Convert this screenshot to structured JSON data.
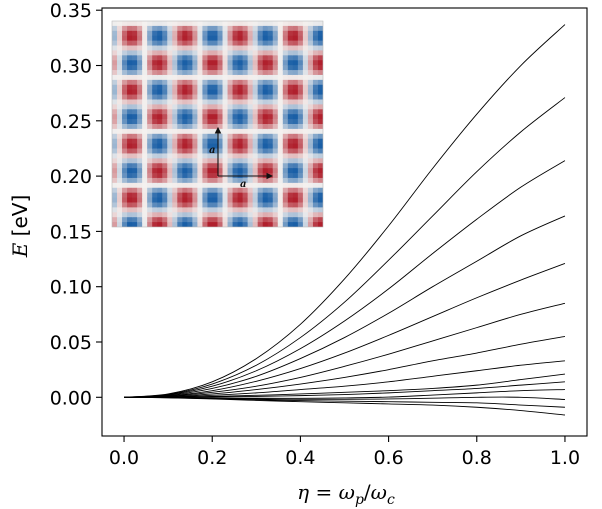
{
  "chart_data": {
    "type": "line",
    "xlabel": {
      "var": "η",
      "eq": " = ",
      "num": "ω",
      "num_sub": "p",
      "slash": "/",
      "den": "ω",
      "den_sub": "c"
    },
    "ylabel": {
      "var": "E",
      "unit": " [eV]"
    },
    "xlim": [
      -0.05,
      1.05
    ],
    "ylim": [
      -0.035,
      0.352
    ],
    "xticks": [
      0.0,
      0.2,
      0.4,
      0.6,
      0.8,
      1.0
    ],
    "xtick_labels": [
      "0.0",
      "0.2",
      "0.4",
      "0.6",
      "0.8",
      "1.0"
    ],
    "yticks": [
      0.0,
      0.05,
      0.1,
      0.15,
      0.2,
      0.25,
      0.3,
      0.35
    ],
    "ytick_labels": [
      "0.00",
      "0.05",
      "0.10",
      "0.15",
      "0.20",
      "0.25",
      "0.30",
      "0.35"
    ],
    "grid": false,
    "legend": "none",
    "line_color": "#000000",
    "x": [
      0.0,
      0.1,
      0.2,
      0.3,
      0.4,
      0.5,
      0.6,
      0.7,
      0.8,
      0.9,
      1.0
    ],
    "series": [
      {
        "values": [
          0,
          0.003,
          0.014,
          0.035,
          0.066,
          0.107,
          0.155,
          0.207,
          0.256,
          0.3,
          0.337
        ]
      },
      {
        "values": [
          0,
          0.0026,
          0.012,
          0.029,
          0.054,
          0.086,
          0.124,
          0.164,
          0.204,
          0.24,
          0.271
        ]
      },
      {
        "values": [
          0,
          0.0022,
          0.01,
          0.024,
          0.044,
          0.069,
          0.098,
          0.13,
          0.161,
          0.19,
          0.214
        ]
      },
      {
        "values": [
          0,
          0.0018,
          0.008,
          0.019,
          0.035,
          0.054,
          0.076,
          0.1,
          0.123,
          0.146,
          0.164
        ]
      },
      {
        "values": [
          0,
          0.0014,
          0.006,
          0.0145,
          0.026,
          0.04,
          0.056,
          0.073,
          0.09,
          0.106,
          0.121
        ]
      },
      {
        "values": [
          0,
          0.001,
          0.0045,
          0.01,
          0.018,
          0.028,
          0.039,
          0.051,
          0.063,
          0.075,
          0.085
        ]
      },
      {
        "values": [
          0,
          0.0007,
          0.003,
          0.007,
          0.012,
          0.018,
          0.025,
          0.033,
          0.04,
          0.048,
          0.055
        ]
      },
      {
        "values": [
          0,
          0.0004,
          0.0018,
          0.004,
          0.007,
          0.01,
          0.014,
          0.019,
          0.024,
          0.029,
          0.033
        ]
      },
      {
        "values": [
          0,
          0.0002,
          0.0008,
          0.0018,
          0.003,
          0.0045,
          0.006,
          0.008,
          0.011,
          0.016,
          0.021
        ]
      },
      {
        "values": [
          0,
          0.0001,
          0.0003,
          0.0008,
          0.0015,
          0.0025,
          0.004,
          0.006,
          0.008,
          0.011,
          0.014
        ]
      },
      {
        "values": [
          0,
          -0.0002,
          -0.0006,
          -0.0008,
          -0.0009,
          -0.0006,
          0.0002,
          0.002,
          0.004,
          0.006,
          0.007
        ]
      },
      {
        "values": [
          0,
          -0.0003,
          -0.001,
          -0.0015,
          -0.0018,
          -0.0018,
          -0.0015,
          -0.0008,
          0.0,
          0.0,
          -0.002
        ]
      },
      {
        "values": [
          0,
          -0.0004,
          -0.0012,
          -0.0022,
          -0.003,
          -0.0035,
          -0.004,
          -0.0045,
          -0.005,
          -0.007,
          -0.009
        ]
      },
      {
        "values": [
          0,
          -0.0005,
          -0.0015,
          -0.0028,
          -0.004,
          -0.005,
          -0.006,
          -0.007,
          -0.009,
          -0.012,
          -0.016
        ]
      }
    ]
  },
  "inset": {
    "vertical_arrow_label": "a",
    "horizontal_arrow_label": "a",
    "colors": {
      "blue": "#1a5fa6",
      "red": "#b0202d",
      "mid": "#f4f1ef"
    }
  }
}
